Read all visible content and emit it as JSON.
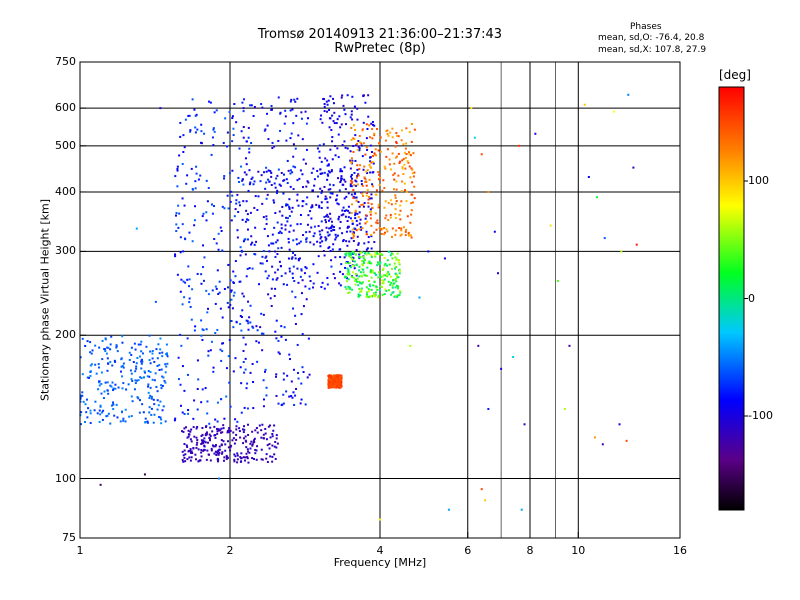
{
  "chart_data": {
    "type": "scatter",
    "title": "Tromsø 20140913 21:36:00–21:37:43",
    "subtitle": "RwPretec (8p)",
    "xlabel": "Frequency [MHz]",
    "ylabel": "Stationary phase Virtual Height [km]",
    "x_scale": "log",
    "y_scale": "log",
    "xlim": [
      1,
      16
    ],
    "ylim": [
      75,
      750
    ],
    "x_ticks": [
      1,
      2,
      4,
      6,
      8,
      10,
      16
    ],
    "x_tick_labels": [
      "1",
      "2",
      "4",
      "6",
      "8",
      "10",
      "16"
    ],
    "x_gridlines": [
      2,
      4,
      6,
      8,
      10
    ],
    "x_minor_lines": [
      7,
      9
    ],
    "y_ticks": [
      75,
      100,
      200,
      300,
      400,
      500,
      600,
      750
    ],
    "y_tick_labels": [
      "75",
      "100",
      "200",
      "300",
      "400",
      "500",
      "600",
      "750"
    ],
    "y_gridlines": [
      100,
      200,
      300,
      400,
      500,
      600
    ],
    "grid": true,
    "colorbar": {
      "label": "[deg]",
      "range": [
        -180,
        180
      ],
      "ticks": [
        100,
        0,
        -100
      ],
      "tick_labels": [
        "100",
        "0",
        "-100"
      ],
      "colormap": "rainbow (black → purple → blue → cyan → green → yellow → orange → red)"
    },
    "stats": {
      "heading": "Phases",
      "line_o": "mean, sd,O: -76.4, 20.8",
      "line_x": "mean, sd,X: 107.8, 27.9"
    },
    "clusters": [
      {
        "x_range": [
          1.0,
          1.5
        ],
        "y_range": [
          130,
          200
        ],
        "phase": -60,
        "spread": 15
      },
      {
        "x_range": [
          1.55,
          2.15
        ],
        "y_range": [
          130,
          630
        ],
        "phase": -75,
        "spread": 20
      },
      {
        "x_range": [
          2.1,
          2.9
        ],
        "y_range": [
          140,
          640
        ],
        "phase": -85,
        "spread": 20
      },
      {
        "x_range": [
          2.05,
          3.6
        ],
        "y_range": [
          250,
          450
        ],
        "phase": -90,
        "spread": 20
      },
      {
        "x_range": [
          3.0,
          3.9
        ],
        "y_range": [
          290,
          640
        ],
        "phase": -95,
        "spread": 15
      },
      {
        "x_range": [
          3.5,
          4.7
        ],
        "y_range": [
          320,
          560
        ],
        "phase": 130,
        "spread": 30
      },
      {
        "x_range": [
          3.15,
          3.35
        ],
        "y_range": [
          155,
          165
        ],
        "phase": 150,
        "spread": 10
      },
      {
        "x_range": [
          3.4,
          4.4
        ],
        "y_range": [
          240,
          300
        ],
        "phase": 30,
        "spread": 40
      },
      {
        "x_range": [
          1.6,
          2.5
        ],
        "y_range": [
          108,
          130
        ],
        "phase": -115,
        "spread": 10
      }
    ],
    "sparse_points": [
      {
        "x": 6.1,
        "y": 600,
        "phase": 90
      },
      {
        "x": 6.2,
        "y": 520,
        "phase": -20
      },
      {
        "x": 6.4,
        "y": 480,
        "phase": 150
      },
      {
        "x": 6.6,
        "y": 400,
        "phase": 120
      },
      {
        "x": 6.8,
        "y": 330,
        "phase": -90
      },
      {
        "x": 6.9,
        "y": 270,
        "phase": -110
      },
      {
        "x": 7.6,
        "y": 500,
        "phase": 160
      },
      {
        "x": 8.2,
        "y": 530,
        "phase": -100
      },
      {
        "x": 8.8,
        "y": 340,
        "phase": 90
      },
      {
        "x": 9.1,
        "y": 260,
        "phase": 40
      },
      {
        "x": 9.6,
        "y": 190,
        "phase": -120
      },
      {
        "x": 10.3,
        "y": 610,
        "phase": 100
      },
      {
        "x": 10.5,
        "y": 430,
        "phase": -90
      },
      {
        "x": 10.9,
        "y": 390,
        "phase": 20
      },
      {
        "x": 11.3,
        "y": 320,
        "phase": -60
      },
      {
        "x": 11.8,
        "y": 590,
        "phase": 80
      },
      {
        "x": 12.2,
        "y": 300,
        "phase": 60
      },
      {
        "x": 12.6,
        "y": 640,
        "phase": -50
      },
      {
        "x": 12.9,
        "y": 450,
        "phase": -110
      },
      {
        "x": 13.1,
        "y": 310,
        "phase": 170
      },
      {
        "x": 6.3,
        "y": 190,
        "phase": -120
      },
      {
        "x": 7.0,
        "y": 170,
        "phase": -100
      },
      {
        "x": 7.4,
        "y": 180,
        "phase": -20
      },
      {
        "x": 6.6,
        "y": 140,
        "phase": -80
      },
      {
        "x": 7.8,
        "y": 130,
        "phase": -110
      },
      {
        "x": 9.4,
        "y": 140,
        "phase": 60
      },
      {
        "x": 10.8,
        "y": 122,
        "phase": 120
      },
      {
        "x": 11.2,
        "y": 118,
        "phase": -120
      },
      {
        "x": 12.1,
        "y": 130,
        "phase": -100
      },
      {
        "x": 12.5,
        "y": 120,
        "phase": 150
      },
      {
        "x": 6.4,
        "y": 95,
        "phase": 150
      },
      {
        "x": 6.5,
        "y": 90,
        "phase": 100
      },
      {
        "x": 7.7,
        "y": 86,
        "phase": -40
      },
      {
        "x": 5.5,
        "y": 86,
        "phase": -40
      },
      {
        "x": 4.0,
        "y": 82,
        "phase": 80
      },
      {
        "x": 1.1,
        "y": 97,
        "phase": -150
      },
      {
        "x": 1.35,
        "y": 102,
        "phase": -160
      },
      {
        "x": 1.9,
        "y": 100,
        "phase": -50
      },
      {
        "x": 1.3,
        "y": 335,
        "phase": -40
      },
      {
        "x": 1.45,
        "y": 600,
        "phase": -110
      },
      {
        "x": 1.42,
        "y": 235,
        "phase": -60
      },
      {
        "x": 4.6,
        "y": 190,
        "phase": 60
      },
      {
        "x": 4.8,
        "y": 240,
        "phase": -40
      },
      {
        "x": 5.4,
        "y": 290,
        "phase": -100
      },
      {
        "x": 5.0,
        "y": 300,
        "phase": -90
      }
    ]
  }
}
